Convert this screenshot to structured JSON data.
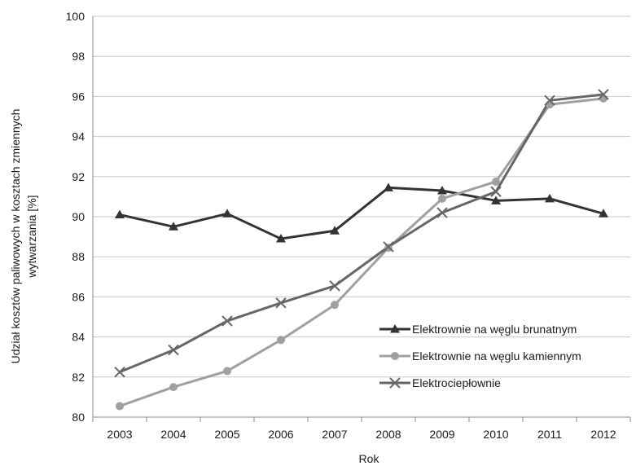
{
  "chart_data": {
    "type": "line",
    "title": "",
    "xlabel": "Rok",
    "ylabel_lines": [
      "Udział kosztów paliwowych w kosztach  zmiennych",
      "wytwarzania [%]"
    ],
    "categories": [
      "2003",
      "2004",
      "2005",
      "2006",
      "2007",
      "2008",
      "2009",
      "2010",
      "2011",
      "2012"
    ],
    "ylim": [
      80,
      100
    ],
    "yticks": [
      "80",
      "82",
      "84",
      "86",
      "88",
      "90",
      "92",
      "94",
      "96",
      "98",
      "100"
    ],
    "grid": "horizontal",
    "legend_position": "bottom-right",
    "series": [
      {
        "name": "Elektrownie na węglu brunatnym",
        "marker": "triangle",
        "color": "#333333",
        "values": [
          90.1,
          89.5,
          90.15,
          88.9,
          89.3,
          91.45,
          91.3,
          90.8,
          90.9,
          90.15
        ]
      },
      {
        "name": "Elektrownie na węglu kamiennym",
        "marker": "circle",
        "color": "#a0a0a0",
        "values": [
          80.55,
          81.5,
          82.3,
          83.85,
          85.6,
          88.45,
          90.9,
          91.75,
          95.6,
          95.9
        ]
      },
      {
        "name": "Elektrociepłownie",
        "marker": "x",
        "color": "#666666",
        "values": [
          82.25,
          83.35,
          84.8,
          85.7,
          86.55,
          88.5,
          90.2,
          91.25,
          95.8,
          96.1
        ]
      }
    ]
  }
}
